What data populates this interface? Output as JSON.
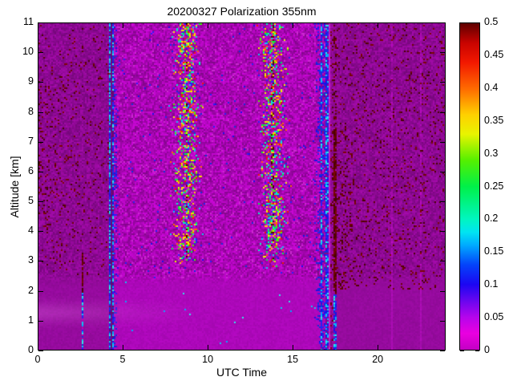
{
  "window": {
    "background": "#ffffff"
  },
  "chart_data": {
    "type": "heatmap",
    "title": "20200327 Polarization 355nm",
    "xlabel": "UTC Time",
    "ylabel": "Altitude [km]",
    "xlim": [
      0,
      24
    ],
    "ylim": [
      0,
      11
    ],
    "clim": [
      0,
      0.5
    ],
    "xticks": [
      0,
      5,
      10,
      15,
      20
    ],
    "yticks": [
      0,
      1,
      2,
      3,
      4,
      5,
      6,
      7,
      8,
      9,
      10,
      11
    ],
    "grid": false,
    "legend": "colorbar-right",
    "colorbar_ticks": [
      {
        "label": "0",
        "value": 0
      },
      {
        "label": "0.05",
        "value": 0.05
      },
      {
        "label": "0.1",
        "value": 0.1
      },
      {
        "label": "0.15",
        "value": 0.15
      },
      {
        "label": "0.2",
        "value": 0.2
      },
      {
        "label": "0.25",
        "value": 0.25
      },
      {
        "label": "0.3",
        "value": 0.3
      },
      {
        "label": "0.35",
        "value": 0.35
      },
      {
        "label": "0.4",
        "value": 0.4
      },
      {
        "label": "0.45",
        "value": 0.45
      },
      {
        "label": "0.5",
        "value": 0.5
      }
    ],
    "colormap_stops": [
      [
        0.0,
        "#c400c4"
      ],
      [
        0.025,
        "#ea00e0"
      ],
      [
        0.05,
        "#b505ec"
      ],
      [
        0.1,
        "#1c06f2"
      ],
      [
        0.13,
        "#0443fa"
      ],
      [
        0.16,
        "#00aaff"
      ],
      [
        0.18,
        "#00e4f2"
      ],
      [
        0.2,
        "#00f6c0"
      ],
      [
        0.25,
        "#00f048"
      ],
      [
        0.29,
        "#55f000"
      ],
      [
        0.33,
        "#e8f400"
      ],
      [
        0.36,
        "#ffd000"
      ],
      [
        0.4,
        "#ff6a00"
      ],
      [
        0.44,
        "#f21800"
      ],
      [
        0.47,
        "#c80300"
      ],
      [
        0.5,
        "#5e0000"
      ]
    ],
    "features": {
      "bg": {
        "side_color": "#8c0992",
        "side_low_color": "#960b9e",
        "mid_color": "#a906b4",
        "mid_low_color": "#ad08ba",
        "low_band_top_km": 2.4,
        "left_end": 4.17,
        "mid_start": 4.45,
        "right_start": 17.62,
        "pink_speckle": "#cb2ad0",
        "dim_speckle": "#82088a",
        "wisp_color": "#d25ad6"
      },
      "palette": {
        "dark_red": [
          "#4a0101",
          "#5c0202",
          "#6f0303",
          "#7e0404"
        ],
        "blue": [
          "#1b10e8",
          "#2a20f5",
          "#1530d8"
        ],
        "cyan": [
          "#10c8f0",
          "#30e8e8",
          "#00aaff"
        ],
        "column_speckle": [
          "#2a20f5",
          "#10c8f0",
          "#00f6c0",
          "#00f048",
          "#55f000",
          "#e8f400",
          "#ffd000",
          "#ff6a00",
          "#f21800",
          "#cb2ad0"
        ]
      },
      "noisy_columns": [
        {
          "center": 8.75,
          "sigma": 0.38,
          "max_p": 0.5,
          "min_alt": 2.7
        },
        {
          "center": 13.85,
          "sigma": 0.38,
          "max_p": 0.5,
          "min_alt": 2.7
        }
      ],
      "stripes": {
        "s1": {
          "t0": 2.52,
          "t1": 2.68,
          "blue_top_km": 1.9,
          "red_top_km": 3.25
        },
        "s2a": {
          "t0": 4.17,
          "t1": 4.27
        },
        "s2b": {
          "t0": 4.32,
          "t1": 4.45
        },
        "s3a": {
          "t0": 16.62,
          "t1": 16.78
        },
        "s3b": {
          "t0": 16.92,
          "t1": 17.1
        },
        "s3c": {
          "t0": 17.1,
          "t1": 17.25,
          "color": "#c61ed0"
        },
        "s4": {
          "t0": 17.38,
          "t1": 17.62,
          "blue_top_km": 1.85,
          "red_top_km": 7.5
        }
      },
      "faint_lines_t": [
        20.9,
        22.6
      ],
      "left_speckle": {
        "base_p": 0.05,
        "min_alt": 2.5,
        "patches": [
          {
            "alt": 5.6,
            "sigma_a": 1.3,
            "t_fade": 2.8,
            "p": 0.12
          },
          {
            "alt": 8.1,
            "sigma_a": 1.0,
            "t_fade": 2.2,
            "p": 0.08
          }
        ]
      },
      "right_speckle": {
        "base_p": 0.07,
        "min_alt": 2.0,
        "patch": {
          "t": 18.1,
          "sigma_t": 0.7,
          "p": 0.1,
          "max_alt": 7.5
        }
      }
    }
  }
}
